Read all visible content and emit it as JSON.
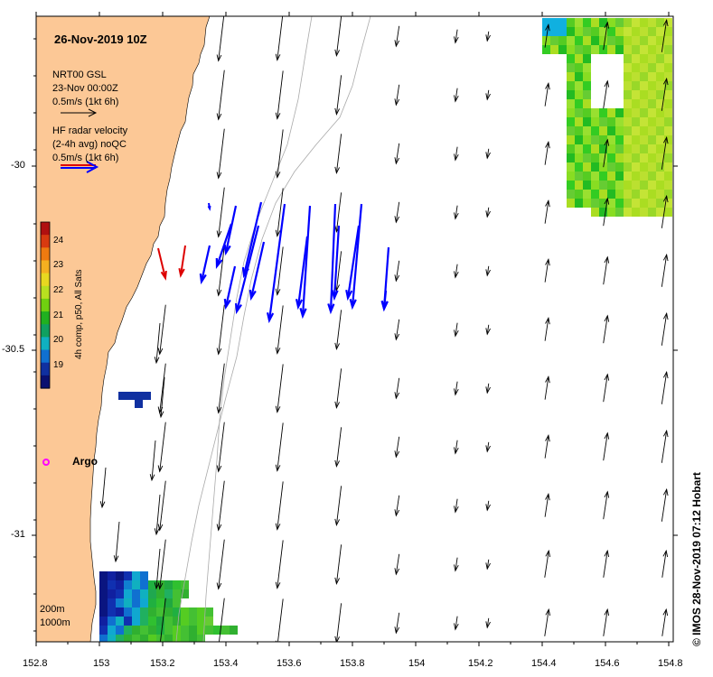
{
  "title": "26-Nov-2019 10Z",
  "legend": {
    "model_line1": "NRT00 GSL",
    "model_line2": "23-Nov 00:00Z",
    "model_scale": "0.5m/s (1kt 6h)",
    "radar_line1": "HF radar velocity",
    "radar_line2": "(2-4h avg) noQC",
    "radar_scale": "0.5m/s (1kt 6h)"
  },
  "colorbar": {
    "label": "4h comp, p50, All Sats",
    "ticks": [
      "24",
      "23",
      "22",
      "21",
      "20",
      "19"
    ]
  },
  "argo_label": "Argo",
  "depth_labels": [
    "200m",
    "1000m"
  ],
  "credit": "© IMOS 28-Nov-2019 07:12 Hobart",
  "axes": {
    "x_ticks": [
      "152.8",
      "153",
      "153.2",
      "153.4",
      "153.6",
      "153.8",
      "154",
      "154.2",
      "154.4",
      "154.6",
      "154.8"
    ],
    "y_ticks": [
      "-30",
      "-30.5",
      "-31"
    ]
  },
  "colors": {
    "land": "#fcc896",
    "model_arrow": "#000000",
    "radar_arrow": "#0000ff",
    "radar_arrow_alt": "#dd0000",
    "argo": "#ff00ff"
  }
}
